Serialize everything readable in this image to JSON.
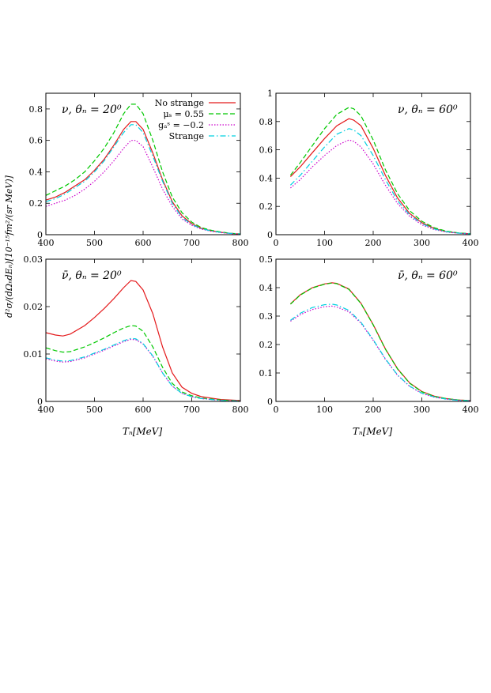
{
  "figure": {
    "ylabel": "d²σ/(dΩₙdEₙ)[10⁻¹⁵fm²/(sr MeV)]",
    "xlabel": "Tₙ[MeV]"
  },
  "legend": {
    "entries": [
      {
        "label": "No strange",
        "color": "#e41a1c",
        "dash": "solid"
      },
      {
        "label": "μₛ = 0.55",
        "color": "#00c800",
        "dash": "dashed"
      },
      {
        "label": "gₐˢ = −0.2",
        "color": "#cc00cc",
        "dash": "dotted"
      },
      {
        "label": "Strange",
        "color": "#00d0e0",
        "dash": "dashdot"
      }
    ]
  },
  "chart_data": [
    {
      "type": "line",
      "title": "ν, θₙ = 20⁰",
      "xlim": [
        400,
        800
      ],
      "ylim": [
        0,
        0.9
      ],
      "xticks": [
        400,
        500,
        600,
        700,
        800
      ],
      "yticks": [
        0,
        0.2,
        0.4,
        0.6,
        0.8
      ],
      "xticklabels": [
        "400",
        "500",
        "600",
        "700",
        "800"
      ],
      "yticklabels": [
        "0",
        "0.2",
        "0.4",
        "0.6",
        "0.8"
      ],
      "x": [
        400,
        420,
        440,
        460,
        480,
        500,
        520,
        540,
        560,
        575,
        585,
        600,
        620,
        640,
        660,
        680,
        700,
        720,
        740,
        760,
        780,
        800
      ],
      "series": [
        {
          "name": "No strange",
          "values": [
            0.22,
            0.24,
            0.27,
            0.31,
            0.35,
            0.41,
            0.48,
            0.57,
            0.67,
            0.72,
            0.72,
            0.67,
            0.52,
            0.35,
            0.21,
            0.12,
            0.07,
            0.04,
            0.025,
            0.015,
            0.008,
            0.004
          ]
        },
        {
          "name": "μₛ = 0.55",
          "values": [
            0.25,
            0.28,
            0.31,
            0.35,
            0.4,
            0.47,
            0.55,
            0.65,
            0.77,
            0.83,
            0.83,
            0.77,
            0.6,
            0.4,
            0.24,
            0.14,
            0.08,
            0.045,
            0.028,
            0.017,
            0.009,
            0.005
          ]
        },
        {
          "name": "gₐˢ = −0.2",
          "values": [
            0.18,
            0.2,
            0.22,
            0.25,
            0.29,
            0.34,
            0.4,
            0.47,
            0.55,
            0.6,
            0.6,
            0.56,
            0.43,
            0.29,
            0.18,
            0.1,
            0.06,
            0.035,
            0.022,
            0.013,
            0.007,
            0.003
          ]
        },
        {
          "name": "Strange",
          "values": [
            0.21,
            0.23,
            0.26,
            0.3,
            0.34,
            0.4,
            0.47,
            0.56,
            0.65,
            0.7,
            0.7,
            0.65,
            0.5,
            0.34,
            0.2,
            0.11,
            0.065,
            0.038,
            0.024,
            0.014,
            0.008,
            0.004
          ]
        }
      ]
    },
    {
      "type": "line",
      "title": "ν, θₙ = 60⁰",
      "xlim": [
        0,
        400
      ],
      "ylim": [
        0,
        1.0
      ],
      "xticks": [
        0,
        100,
        200,
        300,
        400
      ],
      "yticks": [
        0,
        0.2,
        0.4,
        0.6,
        0.8,
        1
      ],
      "xticklabels": [
        "0",
        "100",
        "200",
        "300",
        "400"
      ],
      "yticklabels": [
        "0",
        "0.2",
        "0.4",
        "0.6",
        "0.8",
        "1"
      ],
      "x": [
        30,
        50,
        75,
        100,
        125,
        150,
        160,
        175,
        200,
        225,
        250,
        275,
        300,
        325,
        350,
        375,
        400
      ],
      "series": [
        {
          "name": "No strange",
          "values": [
            0.41,
            0.48,
            0.58,
            0.68,
            0.77,
            0.82,
            0.81,
            0.77,
            0.61,
            0.42,
            0.26,
            0.15,
            0.085,
            0.045,
            0.022,
            0.012,
            0.006
          ]
        },
        {
          "name": "μₛ = 0.55",
          "values": [
            0.42,
            0.51,
            0.63,
            0.75,
            0.85,
            0.9,
            0.89,
            0.84,
            0.67,
            0.46,
            0.29,
            0.17,
            0.095,
            0.05,
            0.025,
            0.013,
            0.007
          ]
        },
        {
          "name": "gₐˢ = −0.2",
          "values": [
            0.33,
            0.39,
            0.48,
            0.56,
            0.63,
            0.67,
            0.66,
            0.62,
            0.5,
            0.35,
            0.22,
            0.13,
            0.07,
            0.037,
            0.019,
            0.01,
            0.005
          ]
        },
        {
          "name": "Strange",
          "values": [
            0.35,
            0.42,
            0.52,
            0.62,
            0.71,
            0.75,
            0.74,
            0.7,
            0.56,
            0.39,
            0.24,
            0.14,
            0.078,
            0.041,
            0.021,
            0.011,
            0.005
          ]
        }
      ]
    },
    {
      "type": "line",
      "title": "ν̄, θₙ = 20⁰",
      "xlim": [
        400,
        800
      ],
      "ylim": [
        0,
        0.03
      ],
      "xticks": [
        400,
        500,
        600,
        700,
        800
      ],
      "yticks": [
        0,
        0.01,
        0.02,
        0.03
      ],
      "xticklabels": [
        "400",
        "500",
        "600",
        "700",
        "800"
      ],
      "yticklabels": [
        "0",
        "0.01",
        "0.02",
        "0.03"
      ],
      "x": [
        400,
        420,
        435,
        450,
        480,
        500,
        520,
        540,
        560,
        575,
        585,
        600,
        620,
        640,
        660,
        680,
        700,
        720,
        740,
        760,
        780,
        800
      ],
      "series": [
        {
          "name": "No strange",
          "values": [
            0.0145,
            0.014,
            0.0138,
            0.0142,
            0.016,
            0.0177,
            0.0196,
            0.0217,
            0.024,
            0.0255,
            0.0253,
            0.0235,
            0.0185,
            0.0115,
            0.006,
            0.003,
            0.0017,
            0.001,
            0.0007,
            0.0004,
            0.0003,
            0.0002
          ]
        },
        {
          "name": "μₛ = 0.55",
          "values": [
            0.0113,
            0.0107,
            0.0104,
            0.0105,
            0.0115,
            0.0124,
            0.0134,
            0.0145,
            0.0155,
            0.016,
            0.0159,
            0.0148,
            0.0115,
            0.0072,
            0.0038,
            0.002,
            0.0012,
            0.0007,
            0.0005,
            0.0003,
            0.0002,
            0.0001
          ]
        },
        {
          "name": "gₐˢ = −0.2",
          "values": [
            0.009,
            0.0085,
            0.0083,
            0.0084,
            0.0092,
            0.01,
            0.0108,
            0.0117,
            0.0126,
            0.0131,
            0.013,
            0.0121,
            0.0095,
            0.006,
            0.0032,
            0.0017,
            0.001,
            0.0006,
            0.0004,
            0.0002,
            0.0001,
            0.0001
          ]
        },
        {
          "name": "Strange",
          "values": [
            0.0092,
            0.0087,
            0.0085,
            0.0086,
            0.0094,
            0.0102,
            0.011,
            0.0119,
            0.0128,
            0.0133,
            0.0132,
            0.0122,
            0.0096,
            0.006,
            0.0032,
            0.0017,
            0.001,
            0.0006,
            0.0004,
            0.0002,
            0.0001,
            0.0001
          ]
        }
      ]
    },
    {
      "type": "line",
      "title": "ν̄, θₙ = 60⁰",
      "xlim": [
        0,
        400
      ],
      "ylim": [
        0,
        0.5
      ],
      "xticks": [
        0,
        100,
        200,
        300,
        400
      ],
      "yticks": [
        0,
        0.1,
        0.2,
        0.3,
        0.4,
        0.5
      ],
      "xticklabels": [
        "0",
        "100",
        "200",
        "300",
        "400"
      ],
      "yticklabels": [
        "0",
        "0.1",
        "0.2",
        "0.3",
        "0.4",
        "0.5"
      ],
      "x": [
        30,
        50,
        75,
        100,
        115,
        125,
        150,
        175,
        200,
        225,
        250,
        275,
        300,
        325,
        350,
        375,
        400
      ],
      "series": [
        {
          "name": "No strange",
          "values": [
            0.343,
            0.375,
            0.4,
            0.413,
            0.417,
            0.415,
            0.395,
            0.345,
            0.27,
            0.185,
            0.115,
            0.065,
            0.035,
            0.019,
            0.01,
            0.005,
            0.003
          ]
        },
        {
          "name": "μₛ = 0.55",
          "values": [
            0.342,
            0.374,
            0.399,
            0.412,
            0.416,
            0.414,
            0.394,
            0.344,
            0.269,
            0.184,
            0.114,
            0.064,
            0.034,
            0.018,
            0.01,
            0.005,
            0.003
          ]
        },
        {
          "name": "gₐˢ = −0.2",
          "values": [
            0.282,
            0.305,
            0.323,
            0.333,
            0.335,
            0.332,
            0.315,
            0.275,
            0.215,
            0.148,
            0.092,
            0.053,
            0.028,
            0.015,
            0.008,
            0.004,
            0.002
          ]
        },
        {
          "name": "Strange",
          "values": [
            0.285,
            0.31,
            0.33,
            0.34,
            0.342,
            0.339,
            0.32,
            0.278,
            0.217,
            0.15,
            0.093,
            0.054,
            0.029,
            0.016,
            0.008,
            0.004,
            0.002
          ]
        }
      ]
    }
  ]
}
